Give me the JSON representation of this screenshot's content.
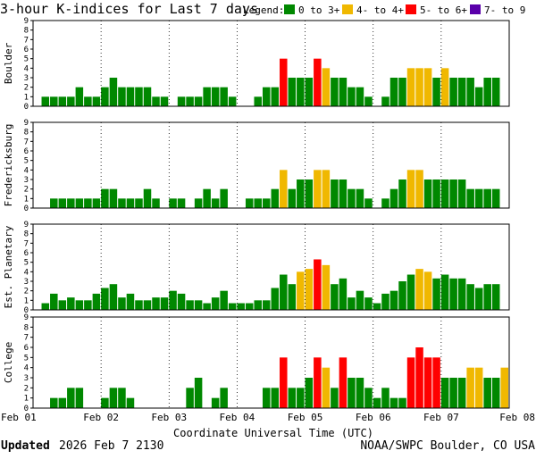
{
  "header": {
    "title": "3-hour K-indices for Last 7 days",
    "legend_label": "Legend:",
    "legend": [
      {
        "label": "0 to 3+",
        "color": "#008800"
      },
      {
        "label": "4- to 4+",
        "color": "#f0b800"
      },
      {
        "label": "5- to 6+",
        "color": "#ff0000"
      },
      {
        "label": "7- to 9",
        "color": "#5a00aa"
      }
    ]
  },
  "footer": {
    "updated_word": "Updated",
    "updated_value": "2026 Feb  7 2130",
    "credit": "NOAA/SWPC Boulder, CO USA"
  },
  "chart_data": {
    "type": "bar",
    "xlabel": "Coordinate Universal Time (UTC)",
    "x_ticks": [
      "Feb 01",
      "Feb 02",
      "Feb 03",
      "Feb 04",
      "Feb 05",
      "Feb 06",
      "Feb 07",
      "Feb 08"
    ],
    "y_ticks": [
      "0",
      "1",
      "2",
      "3",
      "4",
      "5",
      "6",
      "7",
      "8",
      "9"
    ],
    "ylim": [
      0,
      9
    ],
    "bins_per_day": 8,
    "grid": true,
    "color_scale": [
      {
        "max": 3.99,
        "color": "#008800"
      },
      {
        "max": 4.99,
        "color": "#f0b800"
      },
      {
        "max": 6.99,
        "color": "#ff0000"
      },
      {
        "max": 9,
        "color": "#5a00aa"
      }
    ],
    "series": [
      {
        "name": "Boulder",
        "values": [
          0,
          1,
          1,
          1,
          1,
          2,
          1,
          1,
          2,
          3,
          2,
          2,
          2,
          2,
          1,
          1,
          0,
          1,
          1,
          1,
          2,
          2,
          2,
          1,
          0,
          0,
          1,
          2,
          2,
          5,
          3,
          3,
          3,
          5,
          4,
          3,
          3,
          2,
          2,
          1,
          0,
          1,
          3,
          3,
          4,
          4,
          4,
          3,
          4,
          3,
          3,
          3,
          2,
          3,
          3,
          0
        ]
      },
      {
        "name": "Fredericksburg",
        "values": [
          0,
          0,
          1,
          1,
          1,
          1,
          1,
          1,
          2,
          2,
          1,
          1,
          1,
          2,
          1,
          0,
          1,
          1,
          0,
          1,
          2,
          1,
          2,
          0,
          0,
          1,
          1,
          1,
          2,
          4,
          2,
          3,
          3,
          4,
          4,
          3,
          3,
          2,
          2,
          1,
          0,
          1,
          2,
          3,
          4,
          4,
          3,
          3,
          3,
          3,
          3,
          2,
          2,
          2,
          2,
          0
        ]
      },
      {
        "name": "Est. Planetary",
        "values": [
          0,
          0.7,
          1.7,
          1,
          1.3,
          1,
          1,
          1.7,
          2.3,
          2.7,
          1.3,
          1.7,
          1,
          1,
          1.3,
          1.3,
          2,
          1.7,
          1,
          1,
          0.7,
          1.3,
          2,
          0.7,
          0.7,
          0.7,
          1,
          1,
          2.3,
          3.7,
          2.7,
          4,
          4.3,
          5.3,
          4.7,
          2.7,
          3.3,
          1.3,
          2,
          1.3,
          0.7,
          1.7,
          2,
          3,
          3.7,
          4.3,
          4,
          3.3,
          3.7,
          3.3,
          3.3,
          2.7,
          2.3,
          2.7,
          2.7,
          0
        ]
      },
      {
        "name": "College",
        "values": [
          0,
          0,
          1,
          1,
          2,
          2,
          0,
          0,
          1,
          2,
          2,
          1,
          0,
          0,
          0,
          0,
          0,
          0,
          2,
          3,
          0,
          1,
          2,
          0,
          0,
          0,
          0,
          2,
          2,
          5,
          2,
          2,
          3,
          5,
          4,
          2,
          5,
          3,
          3,
          2,
          1,
          2,
          1,
          1,
          5,
          6,
          5,
          5,
          3,
          3,
          3,
          4,
          4,
          3,
          3,
          4
        ]
      }
    ]
  }
}
